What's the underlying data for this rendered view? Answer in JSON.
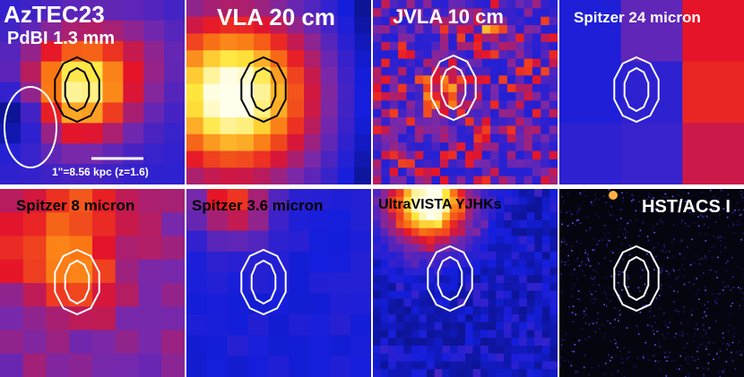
{
  "figure": {
    "panels": [
      {
        "id": "pdbi",
        "title": "AzTEC23",
        "subtitle": "PdBI 1.3 mm",
        "title_color": "#ffffff",
        "contour_color": "#000000",
        "palette": "heat",
        "beam_ellipse": true,
        "scale_bar_label": "1\"=8.56 kpc (z=1.6)"
      },
      {
        "id": "vla20",
        "title": "VLA 20 cm",
        "title_color": "#ffffff",
        "contour_color": "#000000",
        "palette": "heat"
      },
      {
        "id": "jvla10",
        "title": "JVLA 10 cm",
        "title_color": "#ffffff",
        "contour_color": "#ffffff",
        "palette": "heat"
      },
      {
        "id": "spitzer24",
        "title": "Spitzer 24 micron",
        "title_color": "#ffffff",
        "contour_color": "#ffffff",
        "palette": "heat"
      },
      {
        "id": "spitzer8",
        "title": "Spitzer 8 micron",
        "title_color": "#000000",
        "contour_color": "#ffffff",
        "palette": "heat"
      },
      {
        "id": "spitzer36",
        "title": "Spitzer 3.6 micron",
        "title_color": "#000000",
        "contour_color": "#ffffff",
        "palette": "heat"
      },
      {
        "id": "ultravista",
        "title": "UltraVISTA YJHKs",
        "title_color": "#000000",
        "contour_color": "#ffffff",
        "palette": "heat"
      },
      {
        "id": "hstacs",
        "title": "HST/ACS I",
        "title_color": "#ffffff",
        "contour_color": "#ffffff",
        "palette": "dark"
      }
    ]
  }
}
